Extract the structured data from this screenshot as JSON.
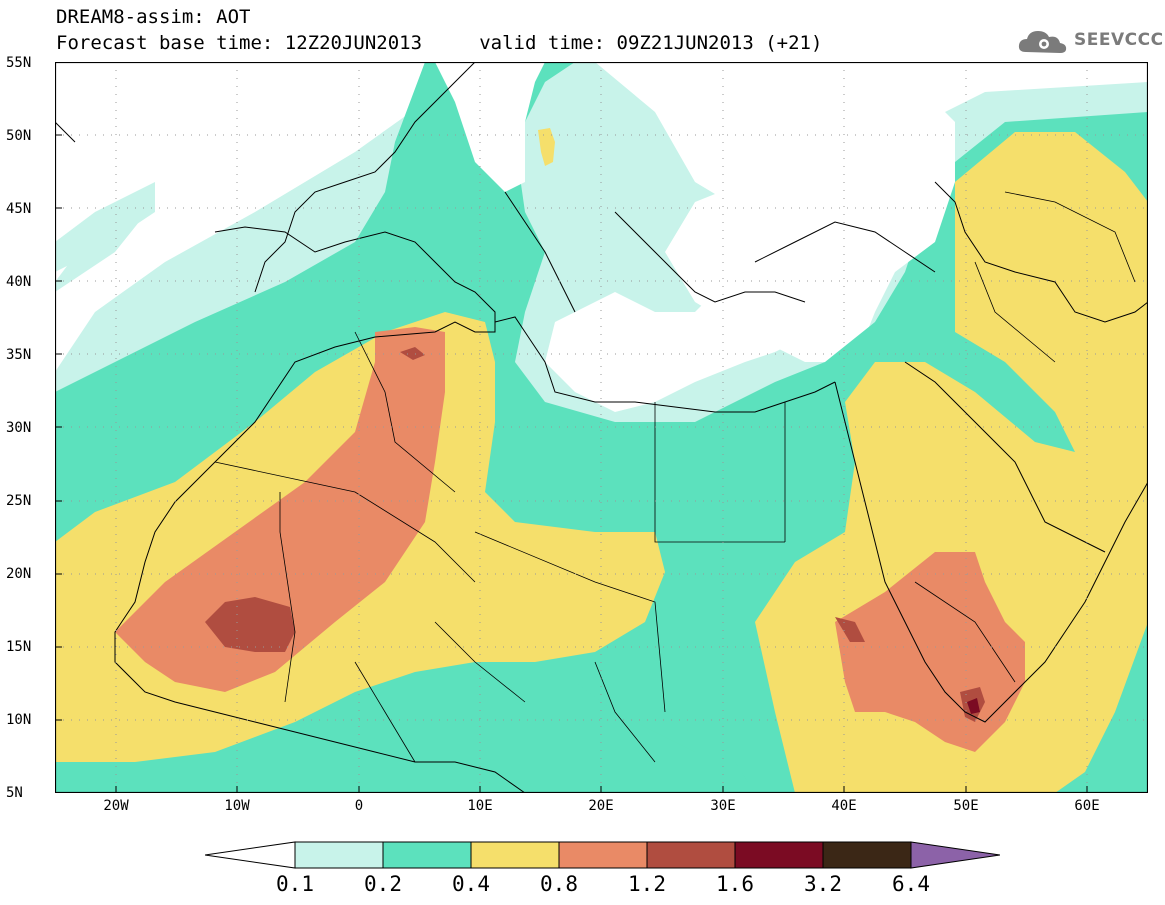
{
  "header": {
    "line1": "DREAM8-assim: AOT",
    "line2": "Forecast base time: 12Z20JUN2013     valid time: 09Z21JUN2013 (+21)"
  },
  "logo": {
    "icon": "cloud-gear-icon",
    "text": "SEEVCCC",
    "color": "#7b7b7b"
  },
  "map": {
    "lat_labels": [
      "55N",
      "50N",
      "45N",
      "40N",
      "35N",
      "30N",
      "25N",
      "20N",
      "15N",
      "10N",
      "5N"
    ],
    "lon_labels": [
      "20W",
      "10W",
      "0",
      "10E",
      "20E",
      "30E",
      "40E",
      "50E",
      "60E"
    ],
    "extent": {
      "lon_min": -25,
      "lon_max": 65,
      "lat_min": 5,
      "lat_max": 55
    }
  },
  "legend": {
    "ticks": [
      "0.1",
      "0.2",
      "0.4",
      "0.8",
      "1.2",
      "1.6",
      "3.2",
      "6.4"
    ],
    "colors": [
      "#c8f3ea",
      "#5ce1bd",
      "#f5df6b",
      "#e98a66",
      "#b04d40",
      "#7b0b23",
      "#3b2716"
    ],
    "under_color": "#ffffff",
    "over_color": "#8c62a8"
  }
}
